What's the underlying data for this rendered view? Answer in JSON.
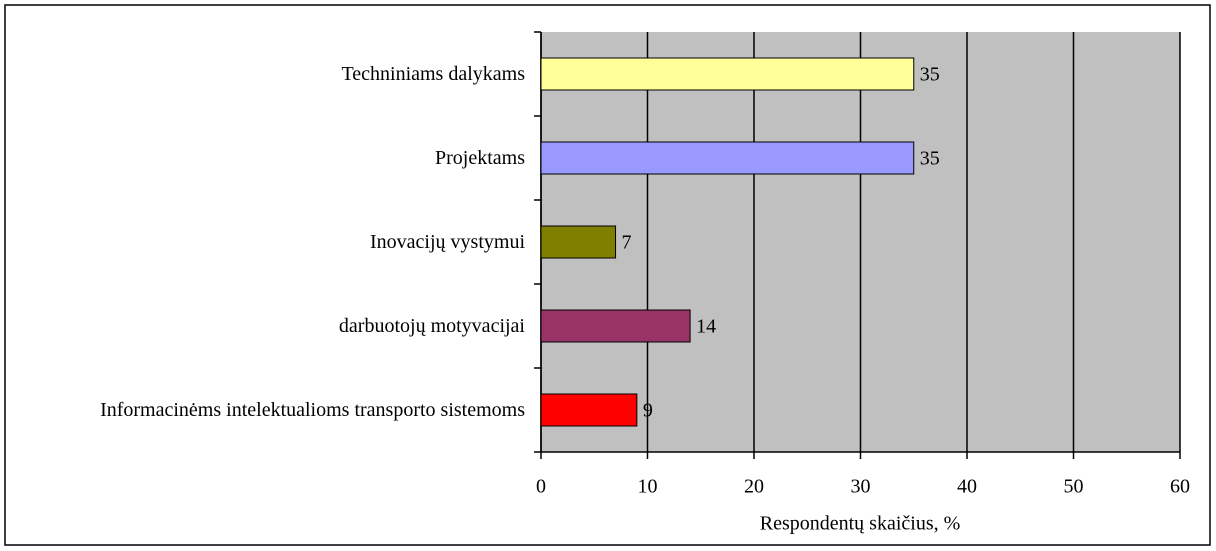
{
  "chart_data": {
    "type": "hbar",
    "categories": [
      "Techniniams dalykams",
      "Projektams",
      "Inovacijų vystymui",
      "darbuotojų motyvacijai",
      "Informacinėms intelektualioms transporto sistemoms"
    ],
    "values": [
      35,
      35,
      7,
      14,
      9
    ],
    "colors": [
      "#ffff99",
      "#9999ff",
      "#808000",
      "#993366",
      "#ff0000"
    ],
    "xlabel": "Respondentų skaičius, %",
    "xlim": [
      0,
      60
    ],
    "xticks": [
      0,
      10,
      20,
      30,
      40,
      50,
      60
    ],
    "grid": true
  }
}
